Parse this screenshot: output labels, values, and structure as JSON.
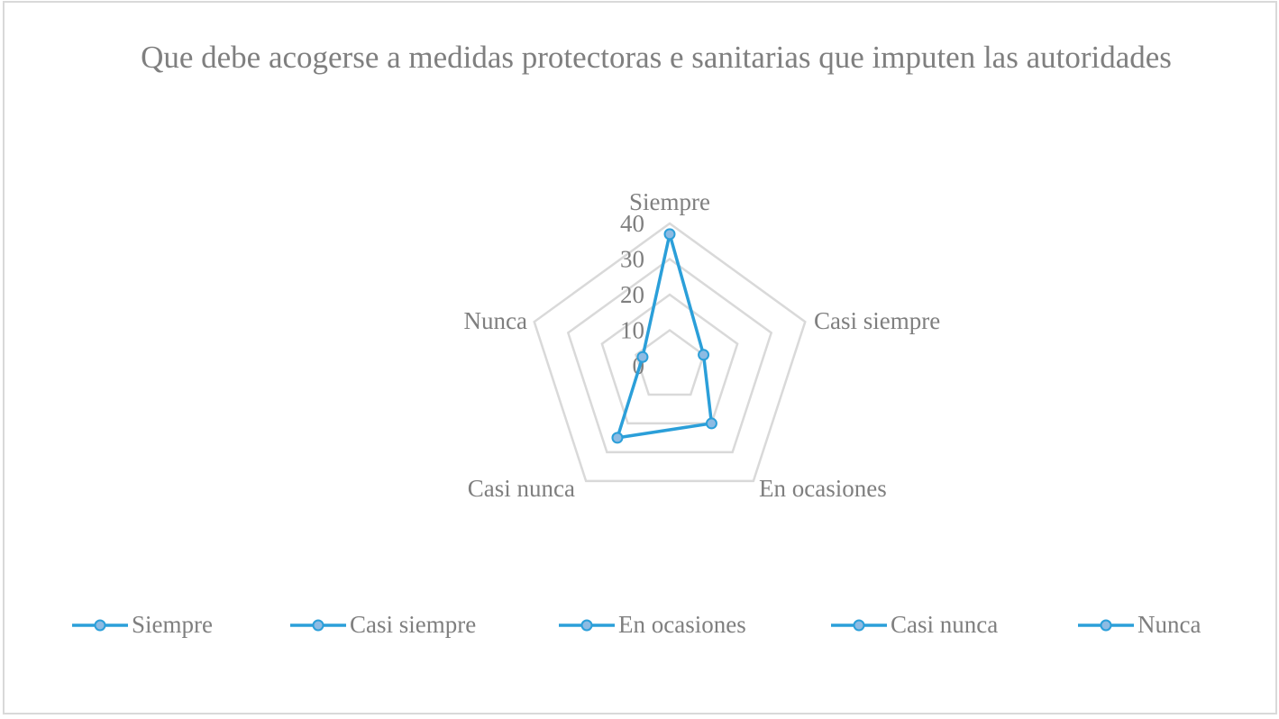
{
  "chart_data": {
    "type": "radar",
    "title": "Que debe acogerse a medidas protectoras e sanitarias que imputen las autoridades",
    "categories": [
      "Siempre",
      "Casi siempre",
      "En ocasiones",
      "Casi nunca",
      "Nunca"
    ],
    "values": [
      37,
      10,
      20,
      25,
      8
    ],
    "radial_ticks": [
      "0",
      "10",
      "20",
      "30",
      "40"
    ],
    "rlim": [
      0,
      40
    ],
    "grid": true,
    "legend": "bottom",
    "legend_entries": [
      "Siempre",
      "Casi siempre",
      "En ocasiones",
      "Casi nunca",
      "Nunca"
    ],
    "colors": {
      "series": "#2b9fd9",
      "marker_fill": "#8dbbe3",
      "grid": "#d9d9d9",
      "text": "#7f7f7f"
    }
  }
}
